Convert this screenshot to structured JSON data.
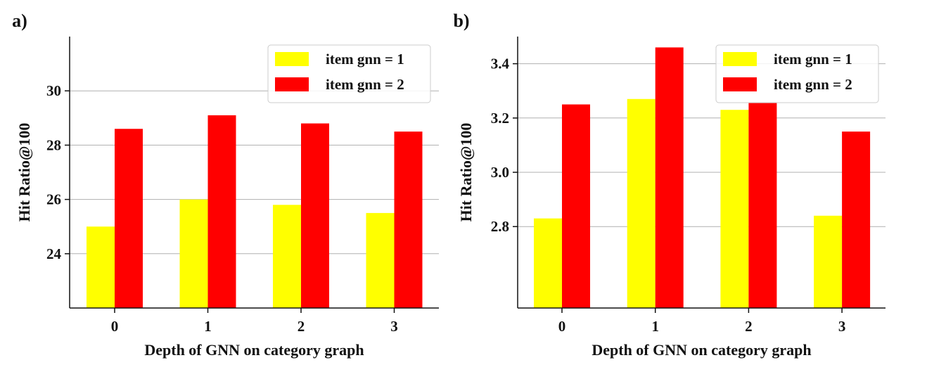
{
  "chart_data": [
    {
      "type": "bar",
      "panel_label": "a)",
      "categories": [
        "0",
        "1",
        "2",
        "3"
      ],
      "series": [
        {
          "name": "item gnn = 1",
          "color": "#ffff00",
          "values": [
            25.0,
            26.0,
            25.8,
            25.5
          ]
        },
        {
          "name": "item gnn = 2",
          "color": "#ff0000",
          "values": [
            28.6,
            29.1,
            28.8,
            28.5
          ]
        }
      ],
      "xlabel": "Depth of GNN on category graph",
      "ylabel": "Hit Ratio@100",
      "ylim": [
        22,
        32
      ],
      "yticks": [
        24,
        26,
        28,
        30
      ],
      "ytick_labels": [
        "24",
        "26",
        "28",
        "30"
      ],
      "grid": "horizontal",
      "legend": "top-right"
    },
    {
      "type": "bar",
      "panel_label": "b)",
      "categories": [
        "0",
        "1",
        "2",
        "3"
      ],
      "series": [
        {
          "name": "item gnn = 1",
          "color": "#ffff00",
          "values": [
            2.83,
            3.27,
            3.23,
            2.84
          ]
        },
        {
          "name": "item gnn = 2",
          "color": "#ff0000",
          "values": [
            3.25,
            3.46,
            3.255,
            3.15
          ]
        }
      ],
      "xlabel": "Depth of GNN on category graph",
      "ylabel": "Hit Ratio@100",
      "ylim": [
        2.5,
        3.5
      ],
      "yticks": [
        2.8,
        3.0,
        3.2,
        3.4
      ],
      "ytick_labels": [
        "2.8",
        "3.0",
        "3.2",
        "3.4"
      ],
      "grid": "horizontal",
      "legend": "top-right"
    }
  ]
}
